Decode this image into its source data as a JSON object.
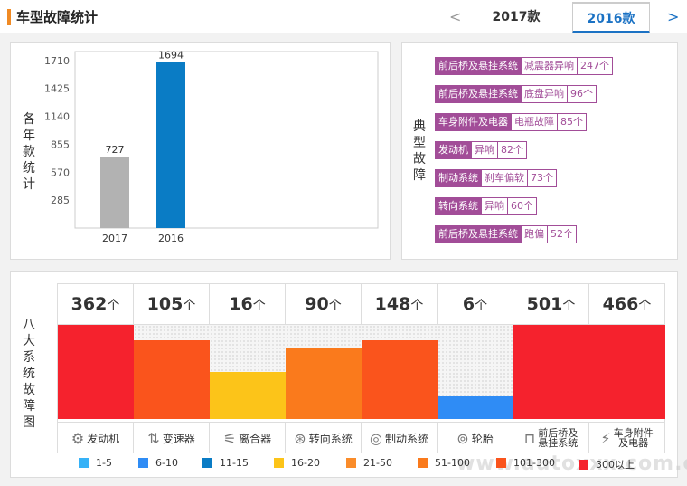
{
  "header": {
    "title": "车型故障统计",
    "prev_glyph": "<",
    "next_glyph": ">",
    "tabs": [
      {
        "label": "2017款",
        "active": false
      },
      {
        "label": "2016款",
        "active": true
      }
    ]
  },
  "yearly": {
    "vlabel": [
      "各",
      "年",
      "款",
      "统",
      "计"
    ]
  },
  "chart_data": [
    {
      "type": "bar",
      "title": "",
      "categories": [
        "2017",
        "2016"
      ],
      "values": [
        727,
        1694
      ],
      "ylim": [
        0,
        1800
      ],
      "yticks": [
        285,
        570,
        855,
        1140,
        1425,
        1710
      ],
      "colors": [
        "#b2b2b2",
        "#0a7cc5"
      ],
      "grid": false
    },
    {
      "type": "bar",
      "title": "",
      "categories": [
        "发动机",
        "变速器",
        "离合器",
        "转向系统",
        "制动系统",
        "轮胎",
        "前后桥及悬挂系统",
        "车身附件及电器"
      ],
      "values": [
        362,
        105,
        16,
        90,
        148,
        6,
        501,
        466
      ],
      "unit": "个",
      "fill_fraction": [
        1.0,
        0.84,
        0.5,
        0.76,
        0.84,
        0.24,
        1.0,
        1.0
      ],
      "colors": [
        "#f5222d",
        "#fa541c",
        "#fcc419",
        "#fa7a1c",
        "#fa541c",
        "#2f8cf5",
        "#f5222d",
        "#f5222d"
      ]
    }
  ],
  "faults": {
    "vlabel": [
      "典",
      "型",
      "故",
      "障"
    ],
    "items": [
      {
        "system": "前后桥及悬挂系统",
        "desc": "减震器异响",
        "count": "247个"
      },
      {
        "system": "前后桥及悬挂系统",
        "desc": "底盘异响",
        "count": "96个"
      },
      {
        "system": "车身附件及电器",
        "desc": "电瓶故障",
        "count": "85个"
      },
      {
        "system": "发动机",
        "desc": "异响",
        "count": "82个"
      },
      {
        "system": "制动系统",
        "desc": "刹车偏软",
        "count": "73个"
      },
      {
        "system": "转向系统",
        "desc": "异响",
        "count": "60个"
      },
      {
        "system": "前后桥及悬挂系统",
        "desc": "跑偏",
        "count": "52个"
      }
    ]
  },
  "eight": {
    "vlabel": [
      "八",
      "大",
      "系",
      "统",
      "故",
      "障",
      "图"
    ],
    "icons": [
      "engine-icon",
      "gearshift-icon",
      "clutch-icon",
      "steering-wheel-icon",
      "brake-disc-icon",
      "tire-icon",
      "suspension-icon",
      "battery-icon"
    ]
  },
  "legend": [
    {
      "label": "1-5",
      "color": "#36b2f7"
    },
    {
      "label": "6-10",
      "color": "#2f8cf5"
    },
    {
      "label": "11-15",
      "color": "#0a7cc5"
    },
    {
      "label": "16-20",
      "color": "#fcc419"
    },
    {
      "label": "21-50",
      "color": "#fa8c2a"
    },
    {
      "label": "51-100",
      "color": "#fa7a1c"
    },
    {
      "label": "101-300",
      "color": "#fa541c"
    },
    {
      "label": "300以上",
      "color": "#f5222d"
    }
  ],
  "watermark": "www.autoxxx.com.cn"
}
